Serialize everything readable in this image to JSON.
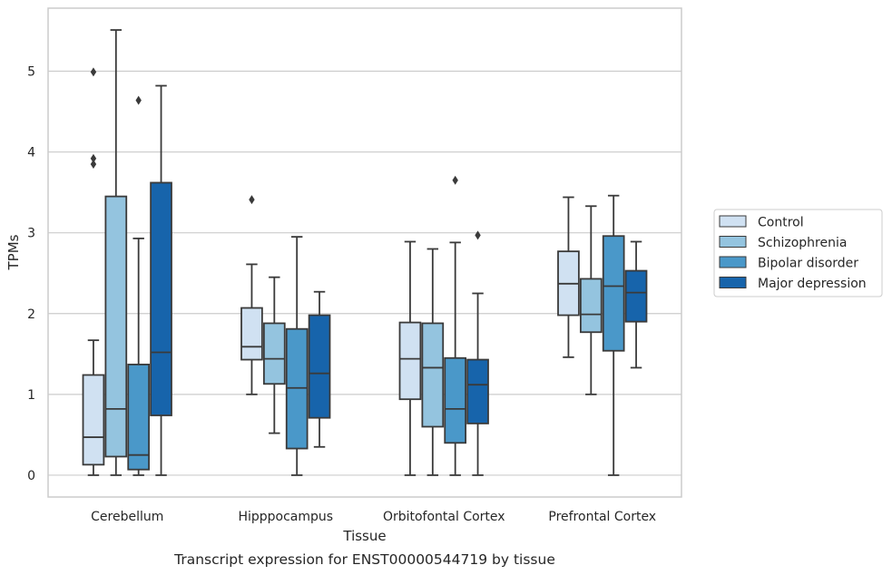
{
  "caption": "Transcript expression for ENST00000544719 by tissue",
  "chart_data": {
    "type": "box",
    "xlabel": "Tissue",
    "ylabel": "TPMs",
    "ylim": [
      -0.27,
      5.78
    ],
    "yticks": [
      0,
      1,
      2,
      3,
      4,
      5
    ],
    "grid": "horizontal",
    "legend_position": "right",
    "categories": [
      "Cerebellum",
      "Hipppocampus",
      "Orbitofontal Cortex",
      "Prefrontal Cortex"
    ],
    "series": [
      {
        "name": "Control",
        "color": "#d0e1f2",
        "boxes": [
          {
            "whislo": 0.0,
            "q1": 0.13,
            "med": 0.47,
            "q3": 1.24,
            "whishi": 1.67,
            "fliers": [
              3.85,
              3.92,
              4.99
            ]
          },
          {
            "whislo": 1.0,
            "q1": 1.43,
            "med": 1.59,
            "q3": 2.07,
            "whishi": 2.61,
            "fliers": [
              3.41
            ]
          },
          {
            "whislo": 0.0,
            "q1": 0.94,
            "med": 1.44,
            "q3": 1.89,
            "whishi": 2.89,
            "fliers": []
          },
          {
            "whislo": 1.46,
            "q1": 1.98,
            "med": 2.37,
            "q3": 2.77,
            "whishi": 3.44,
            "fliers": []
          }
        ]
      },
      {
        "name": "Schizophrenia",
        "color": "#94c4df",
        "boxes": [
          {
            "whislo": 0.0,
            "q1": 0.23,
            "med": 0.82,
            "q3": 3.45,
            "whishi": 5.51,
            "fliers": []
          },
          {
            "whislo": 0.52,
            "q1": 1.13,
            "med": 1.44,
            "q3": 1.88,
            "whishi": 2.45,
            "fliers": []
          },
          {
            "whislo": 0.0,
            "q1": 0.6,
            "med": 1.33,
            "q3": 1.88,
            "whishi": 2.8,
            "fliers": []
          },
          {
            "whislo": 1.0,
            "q1": 1.77,
            "med": 1.99,
            "q3": 2.43,
            "whishi": 3.33,
            "fliers": []
          }
        ]
      },
      {
        "name": "Bipolar disorder",
        "color": "#4a98c9",
        "boxes": [
          {
            "whislo": 0.0,
            "q1": 0.07,
            "med": 0.25,
            "q3": 1.37,
            "whishi": 2.93,
            "fliers": [
              4.64
            ]
          },
          {
            "whislo": 0.0,
            "q1": 0.33,
            "med": 1.08,
            "q3": 1.81,
            "whishi": 2.95,
            "fliers": []
          },
          {
            "whislo": 0.0,
            "q1": 0.4,
            "med": 0.82,
            "q3": 1.45,
            "whishi": 2.88,
            "fliers": [
              3.65
            ]
          },
          {
            "whislo": 0.0,
            "q1": 1.54,
            "med": 2.34,
            "q3": 2.96,
            "whishi": 3.46,
            "fliers": []
          }
        ]
      },
      {
        "name": "Major depression",
        "color": "#1764ab",
        "boxes": [
          {
            "whislo": 0.0,
            "q1": 0.74,
            "med": 1.52,
            "q3": 3.62,
            "whishi": 4.82,
            "fliers": []
          },
          {
            "whislo": 0.35,
            "q1": 0.71,
            "med": 1.26,
            "q3": 1.98,
            "whishi": 2.27,
            "fliers": []
          },
          {
            "whislo": 0.0,
            "q1": 0.64,
            "med": 1.12,
            "q3": 1.43,
            "whishi": 2.25,
            "fliers": [
              2.97
            ]
          },
          {
            "whislo": 1.33,
            "q1": 1.9,
            "med": 2.26,
            "q3": 2.53,
            "whishi": 2.89,
            "fliers": []
          }
        ]
      }
    ]
  },
  "style": {
    "grid_color": "#cccccc",
    "frame_color": "#cccccc",
    "line_color": "#3a3a3a"
  }
}
